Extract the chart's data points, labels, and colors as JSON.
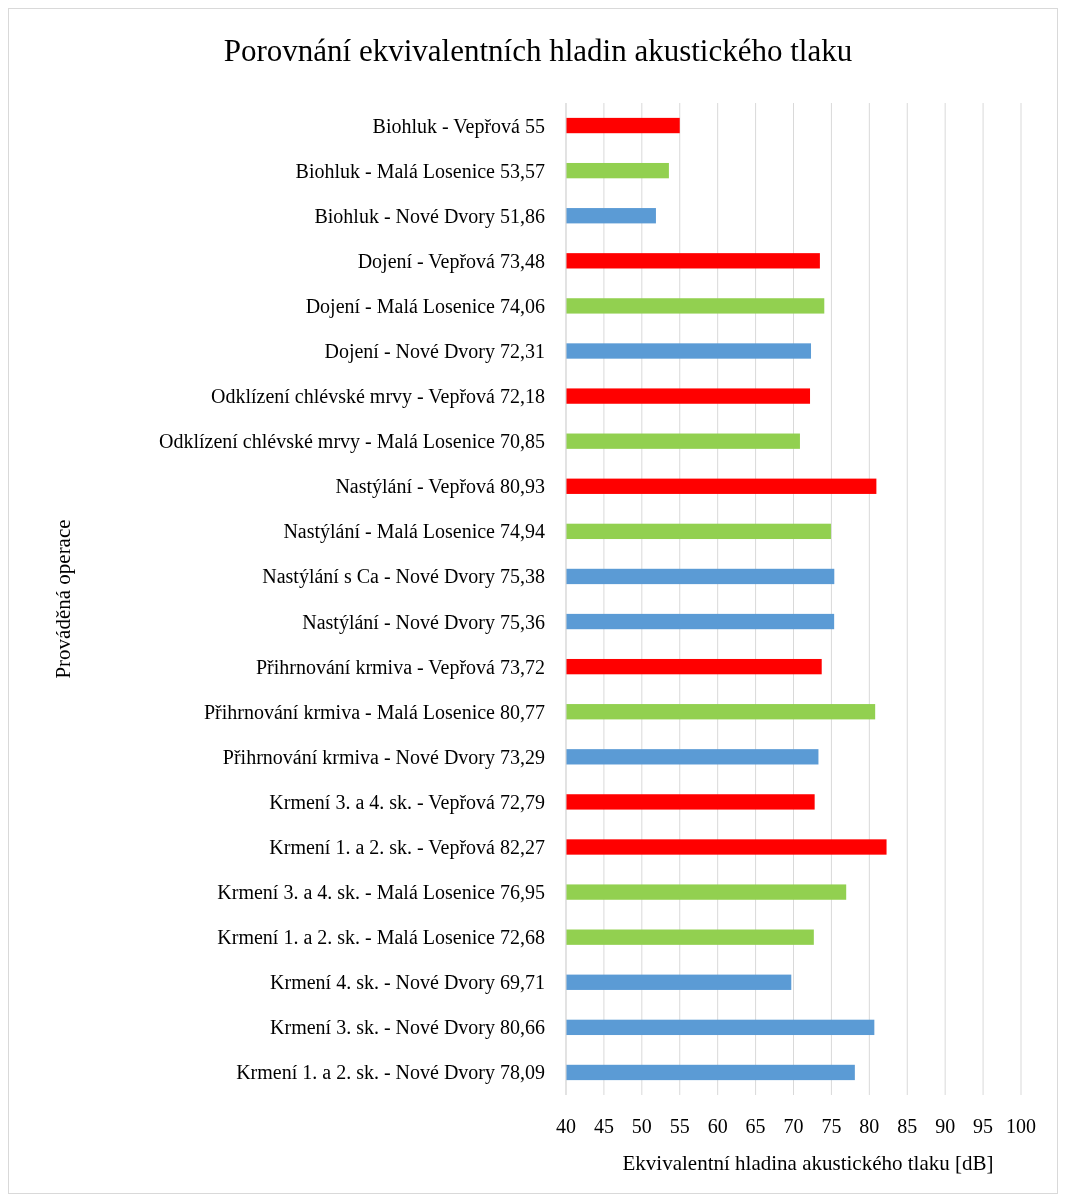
{
  "chart_data": {
    "type": "bar",
    "orientation": "horizontal",
    "title": "Porovnání ekvivalentních hladin akustického tlaku",
    "xlabel": "Ekvivalentní hladina akustického tlaku [dB]",
    "ylabel": "Prováděná operace",
    "categories": [
      "Biohluk - Vepřová 55",
      "Biohluk - Malá Losenice 53,57",
      "Biohluk - Nové Dvory 51,86",
      "Dojení - Vepřová 73,48",
      "Dojení - Malá Losenice 74,06",
      "Dojení - Nové Dvory 72,31",
      "Odklízení chlévské mrvy - Vepřová 72,18",
      "Odklízení chlévské mrvy - Malá Losenice 70,85",
      "Nastýlání - Vepřová 80,93",
      "Nastýlání - Malá Losenice 74,94",
      "Nastýlání s Ca - Nové Dvory 75,38",
      "Nastýlání - Nové Dvory 75,36",
      "Přihrnování krmiva - Vepřová 73,72",
      "Přihrnování krmiva - Malá Losenice 80,77",
      "Přihrnování krmiva - Nové Dvory 73,29",
      "Krmení 3. a 4. sk. - Vepřová 72,79",
      "Krmení 1. a 2. sk. - Vepřová 82,27",
      "Krmení 3. a 4. sk. - Malá Losenice 76,95",
      "Krmení 1. a 2. sk. - Malá Losenice 72,68",
      "Krmení 4. sk. - Nové Dvory 69,71",
      "Krmení 3. sk. - Nové Dvory 80,66",
      "Krmení 1. a 2. sk. - Nové Dvory 78,09"
    ],
    "values": [
      55,
      53.57,
      51.86,
      73.48,
      74.06,
      72.31,
      72.18,
      70.85,
      80.93,
      74.94,
      75.38,
      75.36,
      73.72,
      80.77,
      73.29,
      72.79,
      82.27,
      76.95,
      72.68,
      69.71,
      80.66,
      78.09
    ],
    "colors": [
      "#ff0000",
      "#92d050",
      "#5b9bd5",
      "#ff0000",
      "#92d050",
      "#5b9bd5",
      "#ff0000",
      "#92d050",
      "#ff0000",
      "#92d050",
      "#5b9bd5",
      "#5b9bd5",
      "#ff0000",
      "#92d050",
      "#5b9bd5",
      "#ff0000",
      "#ff0000",
      "#92d050",
      "#92d050",
      "#5b9bd5",
      "#5b9bd5",
      "#5b9bd5"
    ],
    "xlim": [
      40,
      100
    ],
    "xticks": [
      40,
      45,
      50,
      55,
      60,
      65,
      70,
      75,
      80,
      85,
      90,
      95,
      100
    ],
    "grid": "x"
  }
}
